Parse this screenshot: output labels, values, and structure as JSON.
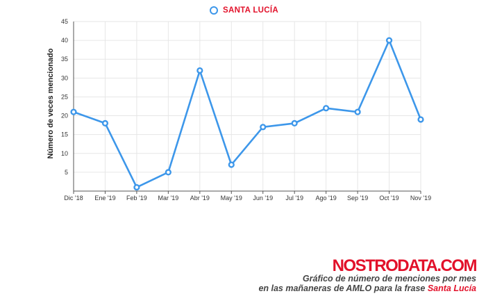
{
  "chart_data": {
    "type": "line",
    "categories": [
      "Dic '18",
      "Ene '19",
      "Feb '19",
      "Mar '19",
      "Abr '19",
      "May '19",
      "Jun '19",
      "Jul '19",
      "Ago '19",
      "Sep '19",
      "Oct '19",
      "Nov '19"
    ],
    "series": [
      {
        "name": "SANTA LUCÍA",
        "values": [
          21,
          18,
          1,
          5,
          32,
          7,
          17,
          18,
          22,
          21,
          40,
          19
        ],
        "color": "#3d97ea"
      }
    ],
    "ylabel": "Número de veces mencionado",
    "yticks": [
      5,
      10,
      15,
      20,
      25,
      30,
      35,
      40,
      45
    ],
    "ylim": [
      0,
      45
    ],
    "grid": true,
    "legend_position": "top-center"
  },
  "branding": {
    "logo": "NOSTRODATA.COM",
    "caption_line1": "Gráfico de número de menciones por mes",
    "caption_line2_prefix": "en las mañaneras de AMLO para la frase ",
    "caption_line2_highlight": "Santa Lucía"
  },
  "colors": {
    "series": "#3d97ea",
    "accent": "#e2112a",
    "grid": "#e6e6e6"
  }
}
